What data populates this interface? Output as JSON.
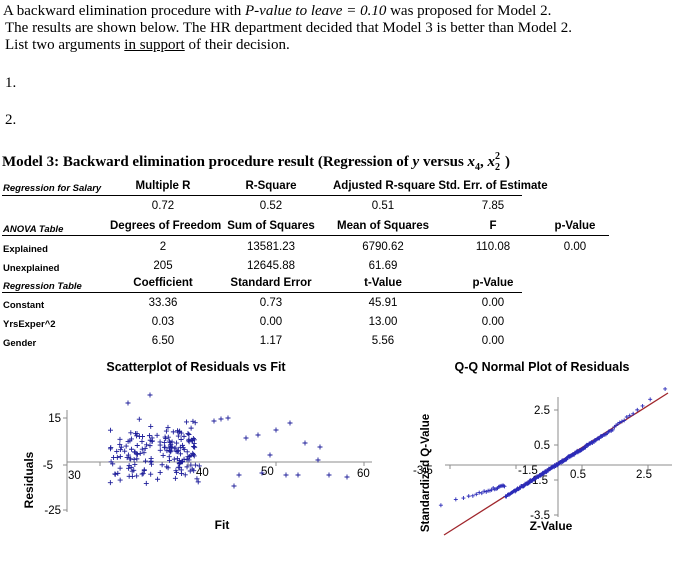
{
  "intro": {
    "line1_a": "A backward elimination procedure with ",
    "line1_b": "P-value to leave = 0.10",
    "line1_c": " was proposed for Model 2.",
    "line2": "The results are shown below. The HR department decided that Model 3 is better than Model 2.",
    "line3_a": "List two arguments ",
    "line3_b": "in support",
    "line3_c": " of their decision.",
    "item1": "1.",
    "item2": "2."
  },
  "model_title": {
    "prefix": "Model 3: Backward elimination procedure result (Regression of ",
    "y": "y",
    "versus": " versus ",
    "vars": "x",
    "sub4": "4",
    "comma": ", ",
    "x2": "x",
    "sup2": "2",
    "sub2": "2",
    "suffix": ")"
  },
  "regression_row": {
    "label": "Regression for Salary",
    "headers": [
      "Multiple R",
      "R-Square",
      "Adjusted R-square",
      "Std. Err. of Estimate"
    ],
    "values": [
      "0.72",
      "0.52",
      "0.51",
      "7.85"
    ]
  },
  "anova": {
    "label": "ANOVA Table",
    "headers": [
      "Degrees of Freedom",
      "Sum of Squares",
      "Mean of Squares",
      "F",
      "p-Value"
    ],
    "rows": [
      {
        "label": "Explained",
        "values": [
          "2",
          "13581.23",
          "6790.62",
          "110.08",
          "0.00"
        ]
      },
      {
        "label": "Unexplained",
        "values": [
          "205",
          "12645.88",
          "61.69",
          "",
          ""
        ]
      }
    ]
  },
  "coef_table": {
    "label": "Regression Table",
    "headers": [
      "Coefficient",
      "Standard Error",
      "t-Value",
      "p-Value"
    ],
    "rows": [
      {
        "label": "Constant",
        "values": [
          "33.36",
          "0.73",
          "45.91",
          "0.00"
        ]
      },
      {
        "label": "YrsExper^2",
        "values": [
          "0.03",
          "0.00",
          "13.00",
          "0.00"
        ]
      },
      {
        "label": "Gender",
        "values": [
          "6.50",
          "1.17",
          "5.56",
          "0.00"
        ]
      }
    ]
  },
  "scatter": {
    "title": "Scatterplot of Residuals vs Fit",
    "ylabel": "Residuals",
    "xlabel": "Fit",
    "y_ticks": [
      "15",
      "-5",
      "-25"
    ],
    "x_ticks": [
      "30",
      "40",
      "50",
      "60"
    ],
    "marker_color": "#1f1f9a"
  },
  "qq": {
    "title": "Q-Q Normal Plot of Residuals",
    "ylabel": "Standardized Q-Value",
    "xlabel": "Z-Value",
    "y_ticks": [
      "2.5",
      "0.5",
      "-1.5",
      "-3.5"
    ],
    "x_ticks": [
      "-3.5",
      "-1.5",
      "0.5",
      "2.5"
    ],
    "marker_color": "#2b2bb8",
    "line_color": "#a0262c"
  }
}
